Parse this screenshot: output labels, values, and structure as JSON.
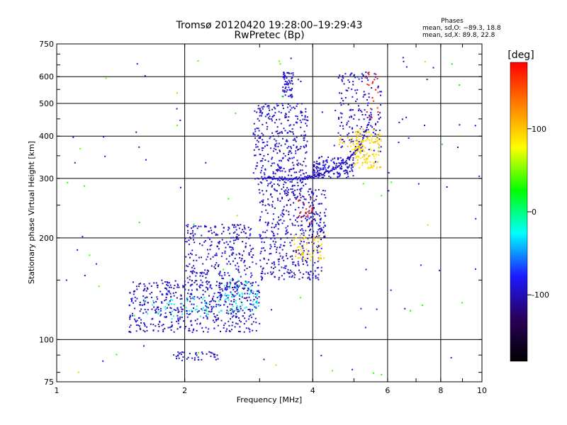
{
  "chart_data": {
    "type": "scatter",
    "title": "Tromsø 20120420 19:28:00–19:29:43",
    "subtitle": "RwPretec (Bp)",
    "xlabel": "Frequency [MHz]",
    "ylabel": "Stationary phase Virtual Height [km]",
    "x_scale": "log",
    "y_scale": "log",
    "xlim": [
      1,
      10
    ],
    "ylim": [
      75,
      750
    ],
    "x_ticks": [
      1,
      2,
      4,
      6,
      8,
      10
    ],
    "y_ticks": [
      75,
      100,
      200,
      300,
      400,
      500,
      600,
      750
    ],
    "grid": true,
    "stats": {
      "heading": "Phases",
      "line_o": "mean, sd,O: −89.3, 18.8",
      "line_x": "mean, sd,X: 89.8, 22.8"
    },
    "colorbar": {
      "label": "[deg]",
      "min": -180,
      "max": 180,
      "ticks": [
        100,
        0,
        -100
      ],
      "colors": [
        "#000000",
        "#2a005a",
        "#1a1aff",
        "#00ffff",
        "#00ff00",
        "#ffff00",
        "#ff8000",
        "#ff0000"
      ]
    },
    "series": [
      {
        "color_value": -95,
        "clusters": [
          {
            "x": [
              1.48,
              3.0
            ],
            "y": [
              105,
              150
            ],
            "n": 520
          },
          {
            "x": [
              2.0,
              2.9
            ],
            "y": [
              140,
              220
            ],
            "n": 300
          },
          {
            "x": [
              2.9,
              3.9
            ],
            "y": [
              270,
              500
            ],
            "n": 380
          },
          {
            "x": [
              3.0,
              4.2
            ],
            "y": [
              150,
              280
            ],
            "n": 380
          },
          {
            "x": [
              3.4,
              3.6
            ],
            "y": [
              520,
              620
            ],
            "n": 60
          },
          {
            "x": [
              4.0,
              5.0
            ],
            "y": [
              300,
              350
            ],
            "n": 140
          },
          {
            "x": [
              4.6,
              5.8
            ],
            "y": [
              350,
              620
            ],
            "n": 170
          },
          {
            "x": [
              1.9,
              2.4
            ],
            "y": [
              87,
              92
            ],
            "n": 40
          },
          {
            "x": [
              3.9,
              4.3
            ],
            "y": [
              200,
              280
            ],
            "n": 60
          }
        ],
        "curves": [
          {
            "x": [
              3.05,
              3.4,
              3.8,
              4.1,
              4.5,
              4.9,
              5.2,
              5.5
            ],
            "y": [
              300,
              298,
              300,
              305,
              320,
              345,
              380,
              460
            ]
          }
        ]
      },
      {
        "color_value": 95,
        "clusters": [
          {
            "x": [
              5.0,
              5.8
            ],
            "y": [
              320,
              420
            ],
            "n": 130
          },
          {
            "x": [
              3.6,
              4.3
            ],
            "y": [
              170,
              205
            ],
            "n": 60
          },
          {
            "x": [
              4.6,
              5.3
            ],
            "y": [
              360,
              400
            ],
            "n": 30
          }
        ]
      },
      {
        "color_value": -20,
        "clusters": [
          {
            "x": [
              2.4,
              3.0
            ],
            "y": [
              120,
              150
            ],
            "n": 60
          },
          {
            "x": [
              1.6,
              2.3
            ],
            "y": [
              115,
              135
            ],
            "n": 40
          }
        ]
      },
      {
        "color_value": 170,
        "clusters": [
          {
            "x": [
              3.7,
              4.0
            ],
            "y": [
              220,
              260
            ],
            "n": 20
          },
          {
            "x": [
              5.3,
              5.7
            ],
            "y": [
              450,
              620
            ],
            "n": 20
          }
        ]
      },
      {
        "color_value": -90,
        "clusters": [
          {
            "x": [
              1.05,
              10
            ],
            "y": [
              78,
              700
            ],
            "n": 90
          }
        ]
      },
      {
        "color_value": 40,
        "clusters": [
          {
            "x": [
              1.05,
              10
            ],
            "y": [
              78,
              700
            ],
            "n": 40
          }
        ]
      }
    ]
  }
}
